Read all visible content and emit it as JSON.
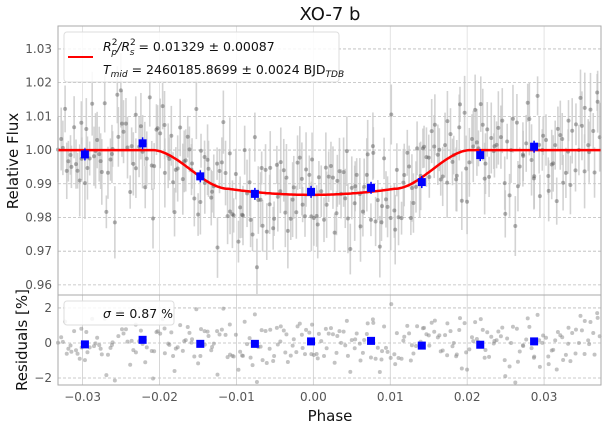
{
  "chart_data": [
    {
      "type": "scatter",
      "panel": "light-curve",
      "title": "XO-7 b",
      "xlabel": "Phase",
      "ylabel": "Relative Flux",
      "xlim": [
        -0.0332,
        0.0374
      ],
      "ylim": [
        0.957,
        1.0368
      ],
      "xticks": [
        "−0.03",
        "−0.02",
        "−0.01",
        "0.00",
        "0.01",
        "0.02",
        "0.03"
      ],
      "xtick_values": [
        -0.03,
        -0.02,
        -0.01,
        0.0,
        0.01,
        0.02,
        0.03
      ],
      "yticks": [
        "0.96",
        "0.97",
        "0.98",
        "0.99",
        "1.00",
        "1.01",
        "1.02",
        "1.03"
      ],
      "ytick_values": [
        0.96,
        0.97,
        0.98,
        0.99,
        1.0,
        1.01,
        1.02,
        1.03
      ],
      "grid": true,
      "legend": {
        "placement": "top-left",
        "line1": {
          "base": "R",
          "sub1": "p",
          "sup1": "2",
          "sep": "/R",
          "sub2": "s",
          "sup2": "2",
          "rest": " = 0.01329 ± 0.00087"
        },
        "line2": {
          "base": "T",
          "sub": "mid",
          "rest": " = 2460185.8699 ± 0.0024 BJD",
          "unit_sub": "TDB"
        }
      },
      "model": {
        "name": "transit model",
        "color": "#ff0000",
        "baseline": 1.0,
        "depth_min": 0.9867,
        "t1": -0.021,
        "t2": -0.011,
        "t3": 0.0105,
        "t4": 0.0205,
        "flat_bottom_edge": 0.9885
      },
      "binned": {
        "color": "#0000ff",
        "x": [
          -0.0297,
          -0.0222,
          -0.0147,
          -0.0076,
          -0.0003,
          0.0075,
          0.0141,
          0.0217,
          0.0287
        ],
        "y": [
          0.9987,
          1.002,
          0.9922,
          0.987,
          0.9876,
          0.9888,
          0.9905,
          0.9985,
          1.001
        ]
      },
      "raw_points": {
        "color": "#555555",
        "errorbar_color": "#c8c8c8",
        "count": 300,
        "scatter_sigma": 0.0087,
        "typical_error": 0.008
      }
    },
    {
      "type": "scatter",
      "panel": "residuals",
      "xlabel": "Phase",
      "ylabel": "Residuals [%]",
      "xlim": [
        -0.0332,
        0.0374
      ],
      "ylim": [
        -2.4,
        2.74
      ],
      "yticks": [
        "−2",
        "0",
        "2"
      ],
      "ytick_values": [
        -2,
        0,
        2
      ],
      "grid": true,
      "legend": {
        "placement": "top-left",
        "text_sym": "σ",
        "text_rest": " = 0.87 %"
      },
      "binned": {
        "color": "#0000ff",
        "x": [
          -0.0297,
          -0.0222,
          -0.0147,
          -0.0076,
          -0.0003,
          0.0075,
          0.0141,
          0.0217,
          0.0287
        ],
        "y": [
          -0.08,
          0.18,
          -0.05,
          -0.05,
          0.09,
          0.12,
          -0.15,
          -0.1,
          0.09
        ]
      },
      "raw_points": {
        "color": "#888888",
        "count": 300,
        "sigma": 0.87
      }
    }
  ]
}
